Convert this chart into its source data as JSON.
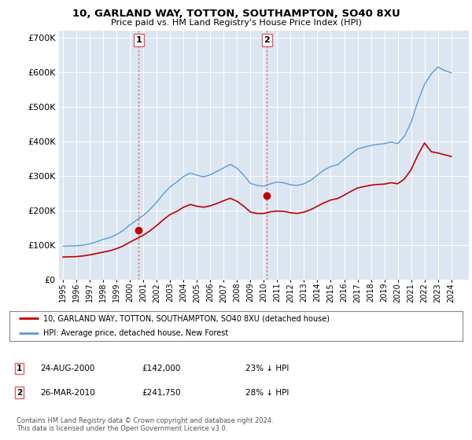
{
  "title": "10, GARLAND WAY, TOTTON, SOUTHAMPTON, SO40 8XU",
  "subtitle": "Price paid vs. HM Land Registry's House Price Index (HPI)",
  "legend_line1": "10, GARLAND WAY, TOTTON, SOUTHAMPTON, SO40 8XU (detached house)",
  "legend_line2": "HPI: Average price, detached house, New Forest",
  "marker1_date": "24-AUG-2000",
  "marker1_price": "£142,000",
  "marker1_hpi": "23% ↓ HPI",
  "marker1_x": 2000.65,
  "marker1_y": 142000,
  "marker2_date": "26-MAR-2010",
  "marker2_price": "£241,750",
  "marker2_hpi": "28% ↓ HPI",
  "marker2_x": 2010.23,
  "marker2_y": 241750,
  "vline1_x": 2000.65,
  "vline2_x": 2010.23,
  "footer": "Contains HM Land Registry data © Crown copyright and database right 2024.\nThis data is licensed under the Open Government Licence v3.0.",
  "hpi_color": "#5b9bd5",
  "price_color": "#c00000",
  "vline_color": "#e06060",
  "plot_bg_color": "#dce6f1",
  "ylim": [
    0,
    720000
  ],
  "xlim": [
    1994.7,
    2025.3
  ],
  "yticks": [
    0,
    100000,
    200000,
    300000,
    400000,
    500000,
    600000,
    700000
  ],
  "years_hpi": [
    1995.0,
    1995.5,
    1996.0,
    1996.5,
    1997.0,
    1997.5,
    1998.0,
    1998.5,
    1999.0,
    1999.5,
    2000.0,
    2000.5,
    2001.0,
    2001.5,
    2002.0,
    2002.5,
    2003.0,
    2003.5,
    2004.0,
    2004.5,
    2005.0,
    2005.5,
    2006.0,
    2006.5,
    2007.0,
    2007.5,
    2008.0,
    2008.5,
    2009.0,
    2009.5,
    2010.0,
    2010.5,
    2011.0,
    2011.5,
    2012.0,
    2012.5,
    2013.0,
    2013.5,
    2014.0,
    2014.5,
    2015.0,
    2015.5,
    2016.0,
    2016.5,
    2017.0,
    2017.5,
    2018.0,
    2018.5,
    2019.0,
    2019.5,
    2020.0,
    2020.5,
    2021.0,
    2021.5,
    2022.0,
    2022.5,
    2023.0,
    2023.5,
    2024.0
  ],
  "hpi_values": [
    96000,
    97000,
    97500,
    99000,
    103000,
    109000,
    116000,
    121000,
    130000,
    142000,
    158000,
    172000,
    185000,
    203000,
    224000,
    248000,
    268000,
    282000,
    298000,
    308000,
    302000,
    297000,
    303000,
    313000,
    323000,
    333000,
    322000,
    302000,
    278000,
    272000,
    270000,
    277000,
    282000,
    280000,
    274000,
    272000,
    277000,
    287000,
    302000,
    317000,
    327000,
    332000,
    348000,
    363000,
    378000,
    383000,
    388000,
    391000,
    393000,
    398000,
    393000,
    415000,
    455000,
    515000,
    565000,
    595000,
    615000,
    605000,
    598000
  ],
  "years_price": [
    1995.0,
    1995.5,
    1996.0,
    1996.5,
    1997.0,
    1997.5,
    1998.0,
    1998.5,
    1999.0,
    1999.5,
    2000.0,
    2000.5,
    2001.0,
    2001.5,
    2002.0,
    2002.5,
    2003.0,
    2003.5,
    2004.0,
    2004.5,
    2005.0,
    2005.5,
    2006.0,
    2006.5,
    2007.0,
    2007.5,
    2008.0,
    2008.5,
    2009.0,
    2009.5,
    2010.0,
    2010.5,
    2011.0,
    2011.5,
    2012.0,
    2012.5,
    2013.0,
    2013.5,
    2014.0,
    2014.5,
    2015.0,
    2015.5,
    2016.0,
    2016.5,
    2017.0,
    2017.5,
    2018.0,
    2018.5,
    2019.0,
    2019.5,
    2020.0,
    2020.5,
    2021.0,
    2021.5,
    2022.0,
    2022.5,
    2023.0,
    2023.5,
    2024.0
  ],
  "price_values": [
    65000,
    65500,
    66000,
    68000,
    71000,
    75000,
    79000,
    83000,
    89000,
    97000,
    108000,
    118000,
    128000,
    141000,
    156000,
    173000,
    188000,
    197000,
    209000,
    217000,
    212000,
    209000,
    213000,
    220000,
    228000,
    235000,
    226000,
    212000,
    195000,
    191000,
    191000,
    196000,
    198000,
    197000,
    193000,
    191000,
    195000,
    202000,
    212000,
    222000,
    230000,
    234000,
    244000,
    255000,
    265000,
    269000,
    273000,
    275000,
    276000,
    280000,
    277000,
    291000,
    318000,
    360000,
    395000,
    370000,
    366000,
    361000,
    356000
  ]
}
